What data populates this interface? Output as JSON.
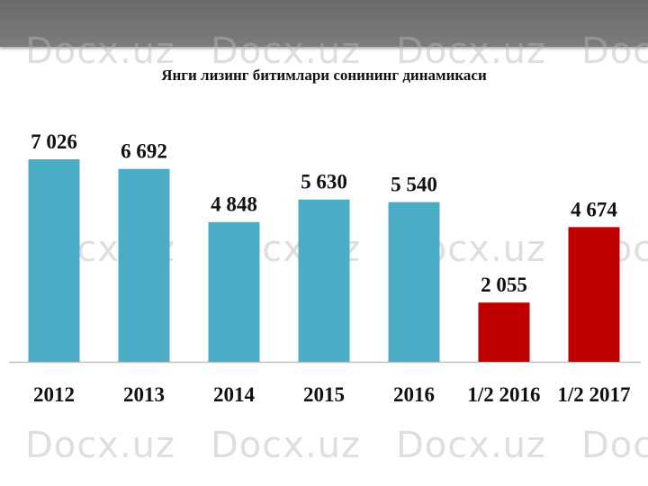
{
  "watermark_text": "Docx.uz",
  "colors": {
    "primary": "#4bacc6",
    "highlight": "#c00000",
    "baseline": "#bfbfbf"
  },
  "chart_data": {
    "type": "bar",
    "title": "Янги лизинг битимлари сонининг динамикаси",
    "categories": [
      "2012",
      "2013",
      "2014",
      "2015",
      "2016",
      "1/2 2016",
      "1/2 2017"
    ],
    "values": [
      7026,
      6692,
      4848,
      5630,
      5540,
      2055,
      4674
    ],
    "value_labels": [
      "7 026",
      "6 692",
      "4 848",
      "5 630",
      "5 540",
      "2 055",
      "4 674"
    ],
    "highlighted_categories": [
      "1/2 2016",
      "1/2 2017"
    ],
    "grid": false,
    "legend": "none"
  }
}
